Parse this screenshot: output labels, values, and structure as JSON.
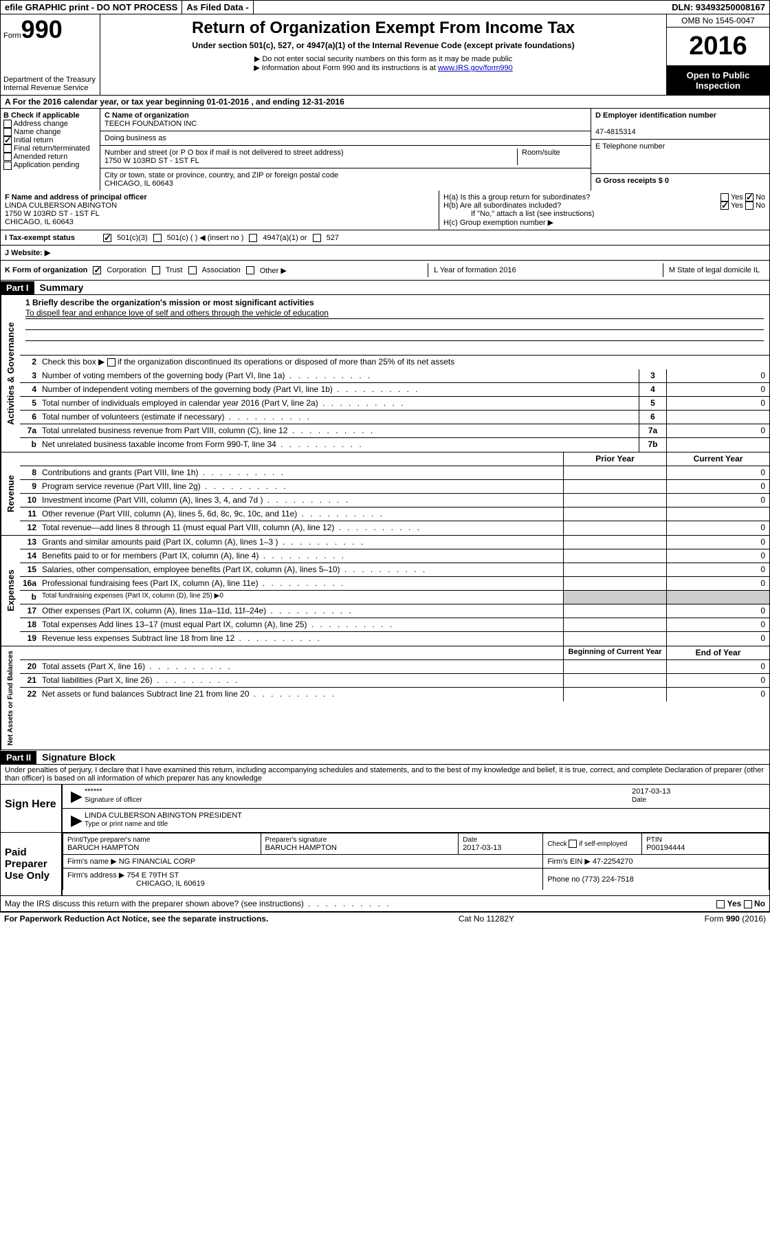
{
  "topbar": {
    "efile": "efile GRAPHIC print - DO NOT PROCESS",
    "asfiled": "As Filed Data -",
    "dln": "DLN: 93493250008167"
  },
  "header": {
    "form_word": "Form",
    "form_num": "990",
    "dept": "Department of the Treasury Internal Revenue Service",
    "title": "Return of Organization Exempt From Income Tax",
    "subtitle": "Under section 501(c), 527, or 4947(a)(1) of the Internal Revenue Code (except private foundations)",
    "note1": "▶ Do not enter social security numbers on this form as it may be made public",
    "note2": "▶ Information about Form 990 and its instructions is at ",
    "note2_link": "www.IRS.gov/form990",
    "omb": "OMB No 1545-0047",
    "year": "2016",
    "inspection": "Open to Public Inspection"
  },
  "row_a": "A  For the 2016 calendar year, or tax year beginning 01-01-2016   , and ending 12-31-2016",
  "section_b": {
    "label": "B Check if applicable",
    "items": [
      "Address change",
      "Name change",
      "Initial return",
      "Final return/terminated",
      "Amended return",
      "Application pending"
    ],
    "checked_index": 2
  },
  "section_c": {
    "name_label": "C Name of organization",
    "name": "TEECH FOUNDATION INC",
    "dba_label": "Doing business as",
    "dba": "",
    "street_label": "Number and street (or P O  box if mail is not delivered to street address)",
    "room_label": "Room/suite",
    "street": "1750 W 103RD ST - 1ST FL",
    "city_label": "City or town, state or province, country, and ZIP or foreign postal code",
    "city": "CHICAGO, IL  60643"
  },
  "section_d": {
    "label": "D Employer identification number",
    "value": "47-4815314"
  },
  "section_e": {
    "label": "E Telephone number",
    "value": ""
  },
  "section_g": {
    "label": "G Gross receipts $ 0"
  },
  "section_f": {
    "label": "F  Name and address of principal officer",
    "name": "LINDA CULBERSON ABINGTON",
    "addr1": "1750 W 103RD ST - 1ST FL",
    "addr2": "CHICAGO, IL  60643"
  },
  "section_h": {
    "ha": "H(a)  Is this a group return for subordinates?",
    "hb": "H(b)  Are all subordinates included?",
    "hb_note": "If \"No,\" attach a list  (see instructions)",
    "hc": "H(c)  Group exemption number ▶",
    "yes": "Yes",
    "no": "No"
  },
  "row_i": {
    "label": "I   Tax-exempt status",
    "opt1": "501(c)(3)",
    "opt2": "501(c) (   ) ◀ (insert no )",
    "opt3": "4947(a)(1) or",
    "opt4": "527"
  },
  "row_j": "J  Website: ▶",
  "row_k": {
    "label": "K Form of organization",
    "opts": [
      "Corporation",
      "Trust",
      "Association",
      "Other ▶"
    ],
    "l_label": "L Year of formation  2016",
    "m_label": "M State of legal domicile  IL"
  },
  "part1": {
    "header": "Part I",
    "title": "Summary",
    "line1_label": "1 Briefly describe the organization's mission or most significant activities",
    "mission": "To dispell fear and enhance love of self and others through the vehicle of education",
    "line2": "Check this box ▶",
    "line2_suffix": "if the organization discontinued its operations or disposed of more than 25% of its net assets",
    "lines_single": [
      {
        "num": "3",
        "text": "Number of voting members of the governing body (Part VI, line 1a)",
        "box": "3",
        "val": "0"
      },
      {
        "num": "4",
        "text": "Number of independent voting members of the governing body (Part VI, line 1b)",
        "box": "4",
        "val": "0"
      },
      {
        "num": "5",
        "text": "Total number of individuals employed in calendar year 2016 (Part V, line 2a)",
        "box": "5",
        "val": "0"
      },
      {
        "num": "6",
        "text": "Total number of volunteers (estimate if necessary)",
        "box": "6",
        "val": ""
      },
      {
        "num": "7a",
        "text": "Total unrelated business revenue from Part VIII, column (C), line 12",
        "box": "7a",
        "val": "0"
      },
      {
        "num": "b",
        "text": "Net unrelated business taxable income from Form 990-T, line 34",
        "box": "7b",
        "val": ""
      }
    ],
    "col_prior": "Prior Year",
    "col_current": "Current Year",
    "revenue_lines": [
      {
        "num": "8",
        "text": "Contributions and grants (Part VIII, line 1h)",
        "prior": "",
        "curr": "0"
      },
      {
        "num": "9",
        "text": "Program service revenue (Part VIII, line 2g)",
        "prior": "",
        "curr": "0"
      },
      {
        "num": "10",
        "text": "Investment income (Part VIII, column (A), lines 3, 4, and 7d )",
        "prior": "",
        "curr": "0"
      },
      {
        "num": "11",
        "text": "Other revenue (Part VIII, column (A), lines 5, 6d, 8c, 9c, 10c, and 11e)",
        "prior": "",
        "curr": ""
      },
      {
        "num": "12",
        "text": "Total revenue—add lines 8 through 11 (must equal Part VIII, column (A), line 12)",
        "prior": "",
        "curr": "0"
      }
    ],
    "expense_lines": [
      {
        "num": "13",
        "text": "Grants and similar amounts paid (Part IX, column (A), lines 1–3 )",
        "prior": "",
        "curr": "0"
      },
      {
        "num": "14",
        "text": "Benefits paid to or for members (Part IX, column (A), line 4)",
        "prior": "",
        "curr": "0"
      },
      {
        "num": "15",
        "text": "Salaries, other compensation, employee benefits (Part IX, column (A), lines 5–10)",
        "prior": "",
        "curr": "0"
      },
      {
        "num": "16a",
        "text": "Professional fundraising fees (Part IX, column (A), line 11e)",
        "prior": "",
        "curr": "0"
      },
      {
        "num": "b",
        "text": "Total fundraising expenses (Part IX, column (D), line 25) ▶0",
        "prior": null,
        "curr": null
      },
      {
        "num": "17",
        "text": "Other expenses (Part IX, column (A), lines 11a–11d, 11f–24e)",
        "prior": "",
        "curr": "0"
      },
      {
        "num": "18",
        "text": "Total expenses  Add lines 13–17 (must equal Part IX, column (A), line 25)",
        "prior": "",
        "curr": "0"
      },
      {
        "num": "19",
        "text": "Revenue less expenses  Subtract line 18 from line 12",
        "prior": "",
        "curr": "0"
      }
    ],
    "col_begin": "Beginning of Current Year",
    "col_end": "End of Year",
    "net_lines": [
      {
        "num": "20",
        "text": "Total assets (Part X, line 16)",
        "prior": "",
        "curr": "0"
      },
      {
        "num": "21",
        "text": "Total liabilities (Part X, line 26)",
        "prior": "",
        "curr": "0"
      },
      {
        "num": "22",
        "text": "Net assets or fund balances  Subtract line 21 from line 20",
        "prior": "",
        "curr": "0"
      }
    ],
    "vert_activities": "Activities & Governance",
    "vert_revenue": "Revenue",
    "vert_expenses": "Expenses",
    "vert_net": "Net Assets or Fund Balances"
  },
  "part2": {
    "header": "Part II",
    "title": "Signature Block",
    "declaration": "Under penalties of perjury, I declare that I have examined this return, including accompanying schedules and statements, and to the best of my knowledge and belief, it is true, correct, and complete  Declaration of preparer (other than officer) is based on all information of which preparer has any knowledge",
    "sign_here": "Sign Here",
    "stars": "******",
    "sig_officer_label": "Signature of officer",
    "sig_date": "2017-03-13",
    "date_label": "Date",
    "officer_name": "LINDA CULBERSON ABINGTON  PRESIDENT",
    "name_title_label": "Type or print name and title",
    "paid": "Paid Preparer Use Only",
    "prep_name_label": "Print/Type preparer's name",
    "prep_name": "BARUCH HAMPTON",
    "prep_sig_label": "Preparer's signature",
    "prep_sig": "BARUCH HAMPTON",
    "prep_date_label": "Date",
    "prep_date": "2017-03-13",
    "check_self": "Check         if self-employed",
    "ptin_label": "PTIN",
    "ptin": "P00194444",
    "firm_name_label": "Firm's name    ▶",
    "firm_name": "NG FINANCIAL CORP",
    "firm_ein_label": "Firm's EIN ▶",
    "firm_ein": "47-2254270",
    "firm_addr_label": "Firm's address ▶",
    "firm_addr": "754 E 79TH ST",
    "firm_city": "CHICAGO, IL  60619",
    "phone_label": "Phone no  (773) 224-7518",
    "discuss": "May the IRS discuss this return with the preparer shown above? (see instructions)",
    "yes": "Yes",
    "no": "No"
  },
  "footer": {
    "paperwork": "For Paperwork Reduction Act Notice, see the separate instructions.",
    "cat": "Cat  No  11282Y",
    "form": "Form 990 (2016)"
  }
}
